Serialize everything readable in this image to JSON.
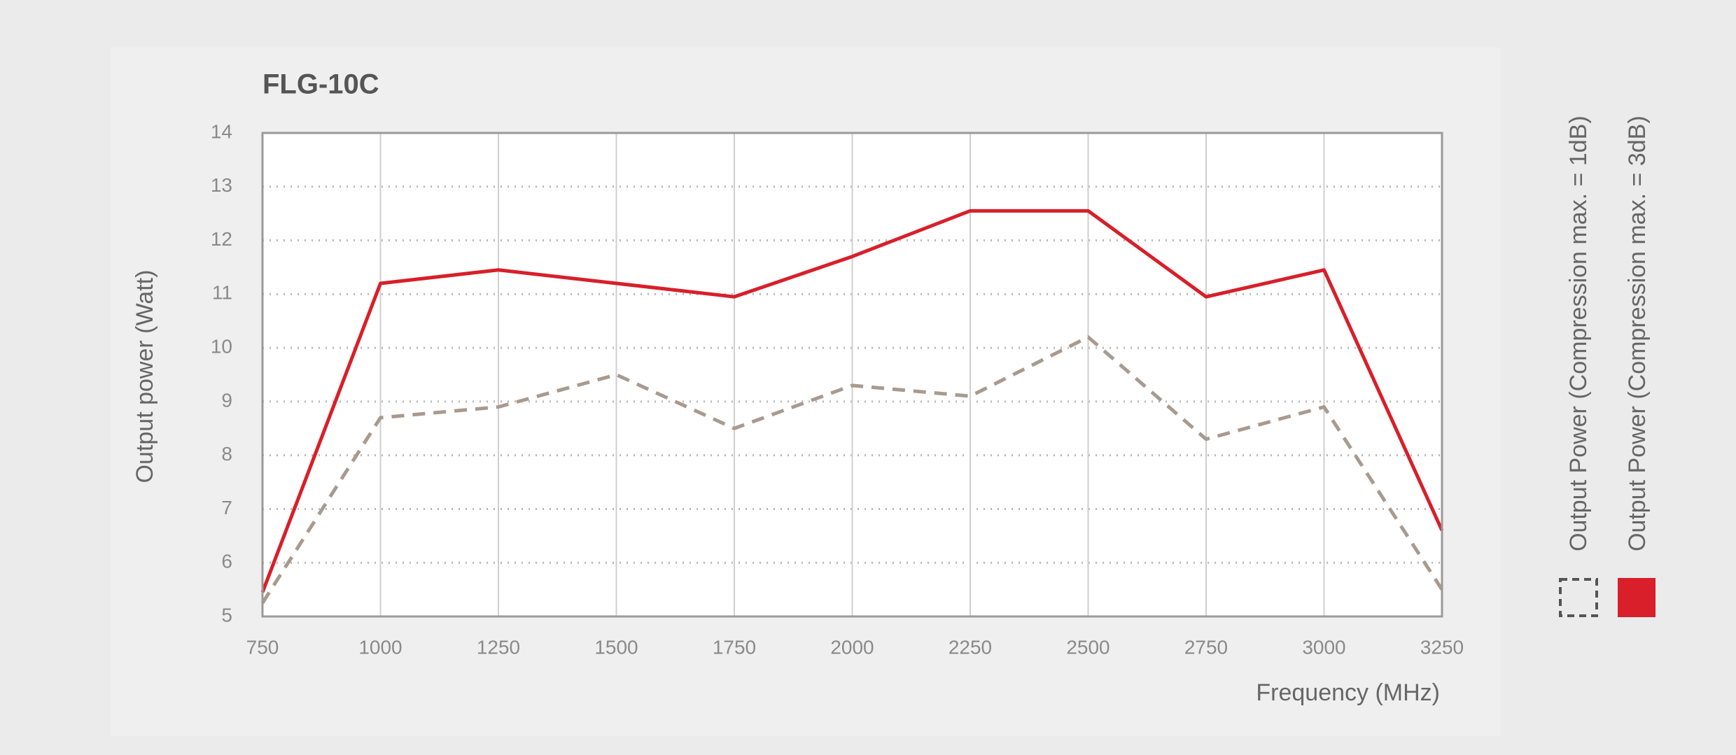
{
  "chart_data": {
    "type": "line",
    "title": "FLG-10C",
    "x_label": "Frequency (MHz)",
    "y_label": "Output power (Watt)",
    "x": [
      750,
      1000,
      1250,
      1500,
      1750,
      2000,
      2250,
      2500,
      2750,
      3000,
      3250
    ],
    "series": [
      {
        "name": "Output Power (Compression max. = 1dB)",
        "color": "#a89a8e",
        "style": "dashed",
        "values": [
          5.25,
          8.7,
          8.9,
          9.5,
          8.5,
          9.3,
          9.1,
          10.2,
          8.3,
          8.9,
          5.5
        ]
      },
      {
        "name": "Output Power (Compression max. = 3dB)",
        "color": "#d81f2a",
        "style": "solid",
        "values": [
          5.45,
          11.2,
          11.45,
          11.2,
          10.95,
          11.7,
          12.55,
          12.55,
          10.95,
          11.45,
          6.6
        ]
      }
    ],
    "xlim": [
      750,
      3250
    ],
    "xticks": [
      750,
      1000,
      1250,
      1500,
      1750,
      2000,
      2250,
      2500,
      2750,
      3000,
      3250
    ],
    "ylim": [
      5,
      14
    ],
    "yticks": [
      5,
      6,
      7,
      8,
      9,
      10,
      11,
      12,
      13,
      14
    ],
    "grid": true,
    "legend": "right"
  }
}
